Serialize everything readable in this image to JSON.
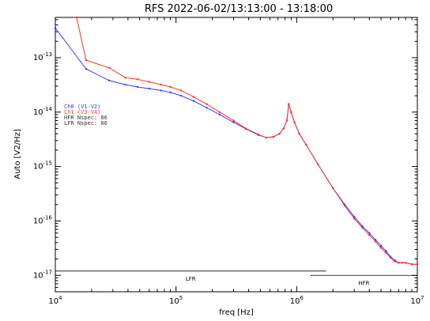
{
  "chart_data": {
    "type": "line",
    "title": "RFS 2022-06-02/13:13:00 - 13:18:00",
    "xlabel": "freq [Hz]",
    "ylabel": "Auto [V2/Hz]",
    "x_scale": "log",
    "y_scale": "log",
    "xlim": [
      10000,
      10000000
    ],
    "ylim": [
      5e-18,
      5.5e-13
    ],
    "grid": false,
    "legend_position": "left",
    "x_ticks": [
      {
        "base": "10",
        "exp": "4",
        "value": 10000
      },
      {
        "base": "10",
        "exp": "5",
        "value": 100000
      },
      {
        "base": "10",
        "exp": "6",
        "value": 1000000
      },
      {
        "base": "10",
        "exp": "7",
        "value": 10000000
      }
    ],
    "y_ticks": [
      {
        "base": "10",
        "exp": "-13",
        "value": 1e-13
      },
      {
        "base": "10",
        "exp": "-14",
        "value": 1e-14
      },
      {
        "base": "10",
        "exp": "-15",
        "value": 1e-15
      },
      {
        "base": "10",
        "exp": "-16",
        "value": 1e-16
      },
      {
        "base": "10",
        "exp": "-17",
        "value": 1e-17
      }
    ],
    "legend": [
      {
        "label": "Ch0 (V1-V2)",
        "color": "#3a3aff"
      },
      {
        "label": "Ch1 (V3-V4)",
        "color": "#ff3030"
      },
      {
        "label": "HFR Nspec: 86",
        "color": "#333333"
      },
      {
        "label": "LFR Nspec: 86",
        "color": "#333333"
      }
    ],
    "bands": [
      {
        "label": "LFR",
        "range": [
          10000,
          1750000
        ],
        "level": 1.2e-17
      },
      {
        "label": "HFR",
        "range": [
          1300000,
          10000000
        ],
        "level": 1e-17
      }
    ],
    "series": [
      {
        "name": "Ch0 (V1-V2)",
        "color": "#3a3aff",
        "x": [
          10000,
          18000,
          28000,
          38000,
          48000,
          60000,
          75000,
          90000,
          110000,
          140000,
          180000,
          230000,
          300000,
          380000,
          480000,
          560000,
          640000,
          720000,
          780000,
          830000,
          860000,
          900000,
          960000,
          1050000,
          1200000,
          1500000,
          2000000,
          2500000,
          3000000,
          3500000,
          4000000,
          4500000,
          5000000,
          5500000,
          6000000,
          6500000,
          7000000,
          7500000,
          8000000,
          9000000,
          10000000
        ],
        "y": [
          3.5e-13,
          6.2e-14,
          3.8e-14,
          3.2e-14,
          2.9e-14,
          2.7e-14,
          2.5e-14,
          2.3e-14,
          2e-14,
          1.6e-14,
          1.2e-14,
          9e-15,
          6.5e-15,
          4.9e-15,
          3.8e-15,
          3.4e-15,
          3.5e-15,
          4e-15,
          5e-15,
          7e-15,
          1.4e-14,
          1e-14,
          6.5e-15,
          4e-15,
          2.5e-15,
          1.1e-15,
          4e-16,
          2e-16,
          1.2e-16,
          8e-17,
          6e-17,
          4.5e-17,
          3.5e-17,
          2.8e-17,
          2.2e-17,
          1.9e-17,
          1.7e-17,
          1.7e-17,
          1.7e-17,
          1.6e-17,
          1.6e-17
        ]
      },
      {
        "name": "Ch1 (V3-V4)",
        "color": "#ff3030",
        "x": [
          15000,
          18000,
          28000,
          38000,
          48000,
          60000,
          75000,
          90000,
          110000,
          140000,
          180000,
          230000,
          300000,
          380000,
          480000,
          560000,
          640000,
          720000,
          780000,
          830000,
          860000,
          900000,
          960000,
          1050000,
          1200000,
          1500000,
          2000000,
          2500000,
          3000000,
          3500000,
          4000000,
          4500000,
          5000000,
          5500000,
          6000000,
          6500000,
          7000000,
          7500000,
          8000000,
          9000000,
          10000000
        ],
        "y": [
          5.5e-13,
          9e-14,
          6.5e-14,
          4.3e-14,
          4e-14,
          3.6e-14,
          3.2e-14,
          2.9e-14,
          2.5e-14,
          1.9e-14,
          1.4e-14,
          1e-14,
          7e-15,
          5e-15,
          3.9e-15,
          3.4e-15,
          3.5e-15,
          4e-15,
          5e-15,
          7e-15,
          1.4e-14,
          1e-14,
          6.5e-15,
          4e-15,
          2.5e-15,
          1.1e-15,
          4e-16,
          1.9e-16,
          1.1e-16,
          7.5e-17,
          5.5e-17,
          4.2e-17,
          3.2e-17,
          2.6e-17,
          2.1e-17,
          1.8e-17,
          1.7e-17,
          1.7e-17,
          1.7e-17,
          1.6e-17,
          1.6e-17
        ]
      }
    ]
  }
}
